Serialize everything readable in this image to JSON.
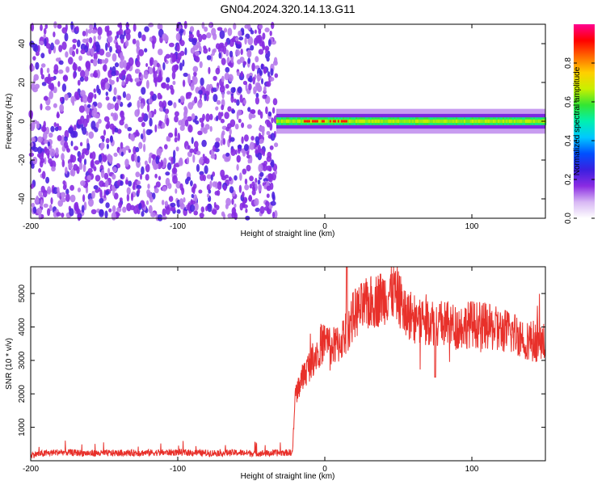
{
  "title": "GN04.2024.320.14.13.G11",
  "colorbar": {
    "label": "Normalized spectral amplitude",
    "ticks": [
      "0.0",
      "0.2",
      "0.4",
      "0.6",
      "0.8"
    ],
    "tick_values": [
      0.0,
      0.2,
      0.4,
      0.6,
      0.8
    ],
    "range": [
      0,
      1
    ],
    "colormap": [
      "#ffffff",
      "#d8b8f4",
      "#8a2be2",
      "#3a1fe0",
      "#0050ff",
      "#00c8ff",
      "#00f0b0",
      "#33e633",
      "#c8f000",
      "#ffd000",
      "#ff6a00",
      "#ff0000",
      "#ff0090"
    ]
  },
  "chart_data": [
    {
      "type": "heatmap",
      "title": "GN04.2024.320.14.13.G11",
      "xlabel": "Height of straight line (km)",
      "ylabel": "Frequency (Hz)",
      "xlim": [
        -200,
        150
      ],
      "ylim": [
        -50,
        50
      ],
      "x_ticks": [
        "-200",
        "-100",
        "0",
        "100"
      ],
      "x_tick_values": [
        -200,
        -100,
        0,
        100
      ],
      "y_ticks": [
        "-40",
        "-20",
        "0",
        "20",
        "40"
      ],
      "y_tick_values": [
        -40,
        -20,
        0,
        20,
        40
      ],
      "description_regions": {
        "noise_region_x": [
          -200,
          -33
        ],
        "noise_amplitude": [
          0.0,
          0.25
        ],
        "signal_start_x": -33,
        "signal_center_freq": 0,
        "signal_halfwidth_hz": 2,
        "signal_peak_x_range": [
          -15,
          15
        ],
        "signal_peak_amplitude": 0.9,
        "signal_band_amplitude": 0.55
      }
    },
    {
      "type": "line",
      "xlabel": "Height of straight line (km)",
      "ylabel": "SNR (10 * v/v)",
      "xlim": [
        -200,
        150
      ],
      "ylim": [
        0,
        5800
      ],
      "x_ticks": [
        "-200",
        "-100",
        "0",
        "100"
      ],
      "x_tick_values": [
        -200,
        -100,
        0,
        100
      ],
      "y_ticks": [
        "1000",
        "2000",
        "3000",
        "4000",
        "5000"
      ],
      "y_tick_values": [
        1000,
        2000,
        3000,
        4000,
        5000
      ],
      "color": "#e8302a",
      "series_control_points": {
        "x": [
          -200,
          -180,
          -160,
          -140,
          -120,
          -100,
          -80,
          -60,
          -40,
          -22,
          -20,
          -15,
          -10,
          -5,
          0,
          5,
          10,
          15,
          20,
          30,
          40,
          48,
          55,
          70,
          80,
          90,
          100,
          110,
          120,
          130,
          140,
          150
        ],
        "y": [
          180,
          260,
          220,
          230,
          240,
          250,
          230,
          240,
          220,
          250,
          2000,
          2500,
          2900,
          3300,
          3600,
          3400,
          3500,
          3900,
          4400,
          4700,
          4900,
          5100,
          4400,
          4200,
          4100,
          4000,
          4100,
          4000,
          3900,
          3800,
          3600,
          3500
        ]
      },
      "annotations": {
        "spike": {
          "x": 15,
          "y": 5800
        },
        "dip": {
          "x": 75,
          "y": 2500
        }
      }
    }
  ]
}
